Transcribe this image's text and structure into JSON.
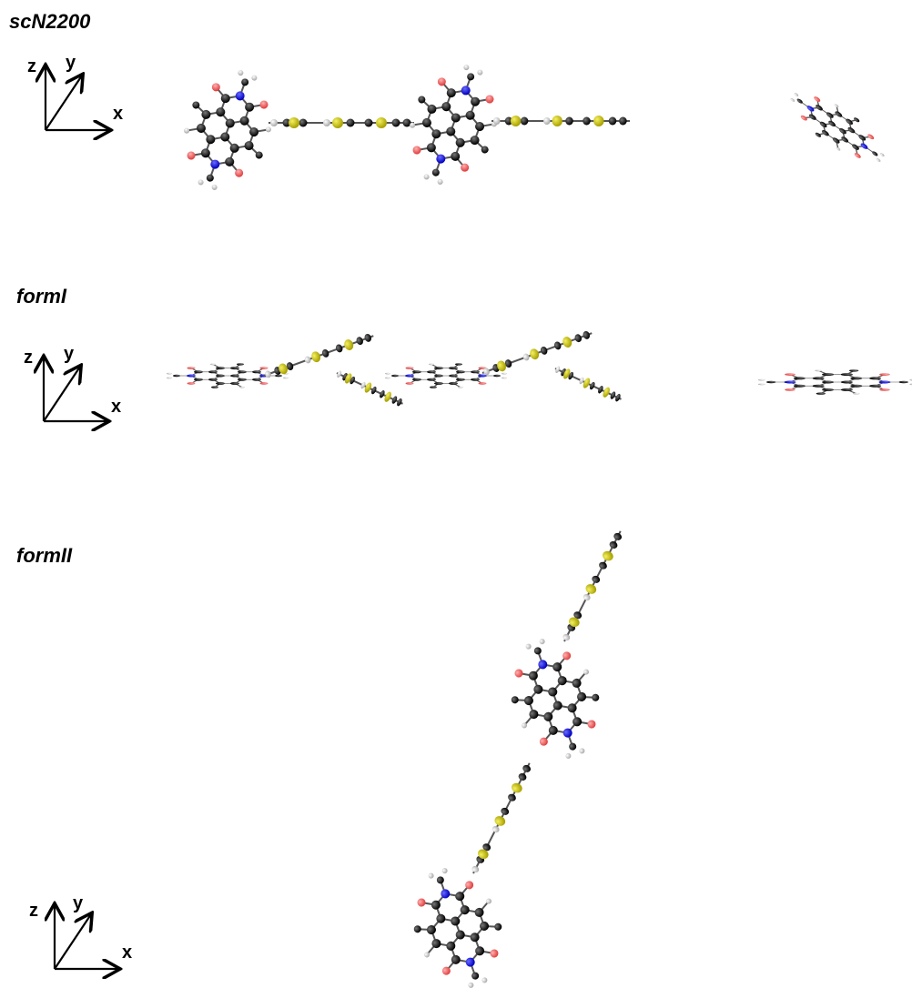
{
  "panels": [
    {
      "label": "scN2200",
      "axes": {
        "z": "z",
        "y": "y",
        "x": "x"
      }
    },
    {
      "label": "formI",
      "axes": {
        "z": "z",
        "y": "y",
        "x": "x"
      }
    },
    {
      "label": "formII",
      "axes": {
        "z": "z",
        "y": "y",
        "x": "x"
      }
    }
  ]
}
